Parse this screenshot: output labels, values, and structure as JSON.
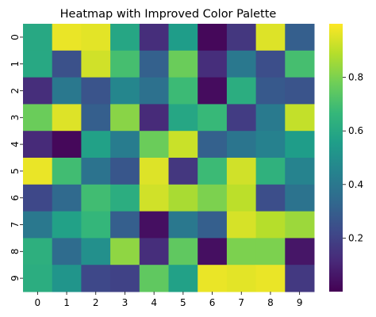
{
  "chart_data": {
    "type": "heatmap",
    "title": "Heatmap with Improved Color Palette",
    "xlabel": "",
    "ylabel": "",
    "x_categories": [
      "0",
      "1",
      "2",
      "3",
      "4",
      "5",
      "6",
      "7",
      "8",
      "9"
    ],
    "y_categories": [
      "0",
      "1",
      "2",
      "3",
      "4",
      "5",
      "6",
      "7",
      "8",
      "9"
    ],
    "values": [
      [
        0.6,
        0.97,
        0.96,
        0.59,
        0.13,
        0.55,
        0.02,
        0.16,
        0.95,
        0.3
      ],
      [
        0.6,
        0.25,
        0.93,
        0.7,
        0.31,
        0.77,
        0.13,
        0.4,
        0.24,
        0.7
      ],
      [
        0.13,
        0.4,
        0.26,
        0.46,
        0.37,
        0.68,
        0.03,
        0.62,
        0.28,
        0.26
      ],
      [
        0.77,
        0.95,
        0.3,
        0.82,
        0.12,
        0.59,
        0.67,
        0.18,
        0.41,
        0.91
      ],
      [
        0.12,
        0.02,
        0.57,
        0.42,
        0.77,
        0.92,
        0.31,
        0.39,
        0.44,
        0.55
      ],
      [
        0.97,
        0.69,
        0.38,
        0.27,
        0.95,
        0.16,
        0.68,
        0.93,
        0.64,
        0.45
      ],
      [
        0.22,
        0.34,
        0.69,
        0.62,
        0.93,
        0.87,
        0.8,
        0.9,
        0.24,
        0.38
      ],
      [
        0.4,
        0.57,
        0.66,
        0.3,
        0.04,
        0.4,
        0.3,
        0.94,
        0.89,
        0.85
      ],
      [
        0.63,
        0.35,
        0.5,
        0.83,
        0.13,
        0.75,
        0.04,
        0.8,
        0.8,
        0.06
      ],
      [
        0.62,
        0.52,
        0.22,
        0.2,
        0.75,
        0.57,
        0.97,
        0.96,
        0.97,
        0.17
      ]
    ],
    "colormap": "viridis",
    "color_range": [
      0.0,
      1.0
    ],
    "colorbar_ticks": [
      0.2,
      0.4,
      0.6,
      0.8
    ],
    "colorbar_tick_labels": [
      "0.2",
      "0.4",
      "0.6",
      "0.8"
    ],
    "colorbar_stops": [
      "#440154",
      "#482878",
      "#3e4989",
      "#31688e",
      "#26828e",
      "#1f9e89",
      "#35b779",
      "#6ece58",
      "#b5de2b",
      "#fde725"
    ],
    "grid": false,
    "legend": "colorbar-right"
  }
}
